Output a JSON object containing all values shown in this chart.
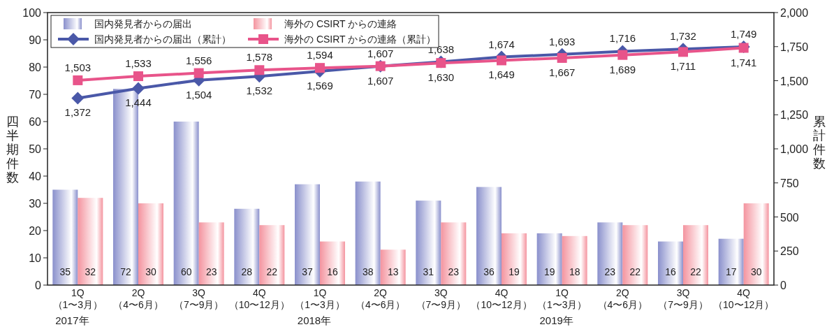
{
  "chart_data": {
    "type": "bar",
    "ylabel": "四半期件数",
    "y2label": "累計件数",
    "categories": [
      "1Q\n（1〜3月）",
      "2Q\n（4〜6月）",
      "3Q\n（7〜9月）",
      "4Q\n（10〜12月）",
      "1Q\n（1〜3月）",
      "2Q\n（4〜6月）",
      "3Q\n（7〜9月）",
      "4Q\n（10〜12月）",
      "1Q\n（1〜3月）",
      "2Q\n（4〜6月）",
      "3Q\n（7〜9月）",
      "4Q\n（10〜12月）"
    ],
    "series": [
      {
        "name": "国内発見者からの届出",
        "color": "#8a90cc",
        "values": [
          35,
          72,
          60,
          28,
          37,
          38,
          31,
          36,
          19,
          23,
          16,
          17
        ],
        "value_labels": [
          "35",
          "72",
          "60",
          "28",
          "37",
          "38",
          "31",
          "36",
          "19",
          "23",
          "16",
          "17"
        ]
      },
      {
        "name": "海外の CSIRT からの連絡",
        "color": "#f4949f",
        "values": [
          32,
          30,
          23,
          22,
          16,
          13,
          23,
          19,
          18,
          22,
          22,
          30
        ],
        "value_labels": [
          "32",
          "30",
          "23",
          "22",
          "16",
          "13",
          "23",
          "19",
          "18",
          "22",
          "22",
          "30"
        ]
      },
      {
        "name": "国内発見者からの届出（累計）",
        "type": "line",
        "axis": "y2",
        "marker": "diamond",
        "color": "#4a58a8",
        "values": [
          1372,
          1444,
          1504,
          1532,
          1569,
          1607,
          1638,
          1674,
          1693,
          1716,
          1732,
          1749
        ],
        "value_labels": [
          "1,372",
          "1,444",
          "1,504",
          "1,532",
          "1,569",
          "1,607",
          "1,638",
          "1,674",
          "1,693",
          "1,716",
          "1,732",
          "1,749"
        ]
      },
      {
        "name": "海外の CSIRT からの連絡（累計）",
        "type": "line",
        "axis": "y2",
        "marker": "square",
        "color": "#e8548a",
        "values": [
          1503,
          1533,
          1556,
          1578,
          1594,
          1607,
          1630,
          1649,
          1667,
          1689,
          1711,
          1741
        ],
        "value_labels": [
          "1,503",
          "1,533",
          "1,556",
          "1,578",
          "1,594",
          "1,607",
          "1,630",
          "1,649",
          "1,667",
          "1,689",
          "1,711",
          "1,741"
        ]
      }
    ],
    "ylim": [
      0,
      100
    ],
    "yticks": [
      0,
      10,
      20,
      30,
      40,
      50,
      60,
      70,
      80,
      90,
      100
    ],
    "y2lim": [
      0,
      2000
    ],
    "y2ticks": [
      0,
      250,
      500,
      750,
      {
        "value": 1000,
        "label": "1,000"
      },
      {
        "value": 1250,
        "label": "1,250"
      },
      {
        "value": 1500,
        "label": "1,500"
      },
      {
        "value": 1750,
        "label": "1,750"
      },
      {
        "value": 2000,
        "label": "2,000"
      }
    ],
    "legend": "top left",
    "grid": false,
    "annotations": [
      "2017年",
      "2018年",
      "2019年"
    ]
  }
}
